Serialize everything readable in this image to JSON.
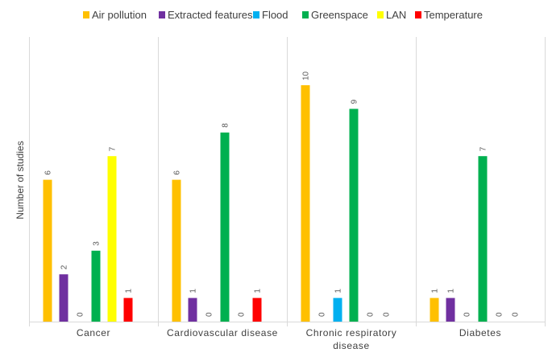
{
  "chart_data": {
    "type": "bar",
    "title": "",
    "xlabel": "",
    "ylabel": "Number of studies",
    "ylim": [
      0,
      10
    ],
    "grid": false,
    "legend_position": "top",
    "categories": [
      "Cancer",
      "Cardiovascular disease",
      "Chronic respiratory disease",
      "Diabetes"
    ],
    "series": [
      {
        "name": "Air pollution",
        "color": "#FFC000",
        "values": [
          6,
          6,
          10,
          1
        ]
      },
      {
        "name": "Extracted features",
        "color": "#7030A0",
        "values": [
          2,
          1,
          0,
          1
        ]
      },
      {
        "name": "Flood",
        "color": "#00B0F0",
        "values": [
          0,
          0,
          1,
          0
        ]
      },
      {
        "name": "Greenspace",
        "color": "#00B050",
        "values": [
          3,
          8,
          9,
          7
        ]
      },
      {
        "name": "LAN",
        "color": "#FFFF00",
        "values": [
          7,
          0,
          0,
          0
        ]
      },
      {
        "name": "Temperature",
        "color": "#FF0000",
        "values": [
          1,
          1,
          0,
          0
        ]
      }
    ],
    "data_labels": [
      [
        "6",
        "2",
        "0",
        "3",
        "7",
        "1"
      ],
      [
        "6",
        "1",
        "0",
        "8",
        "0",
        "1"
      ],
      [
        "10",
        "0",
        "1",
        "9",
        "0",
        "0"
      ],
      [
        "1",
        "1",
        "0",
        "7",
        "0",
        "0"
      ]
    ],
    "category_label_lines": [
      [
        "Cancer"
      ],
      [
        "Cardiovascular disease"
      ],
      [
        "Chronic respiratory",
        "disease"
      ],
      [
        "Diabetes"
      ]
    ]
  }
}
